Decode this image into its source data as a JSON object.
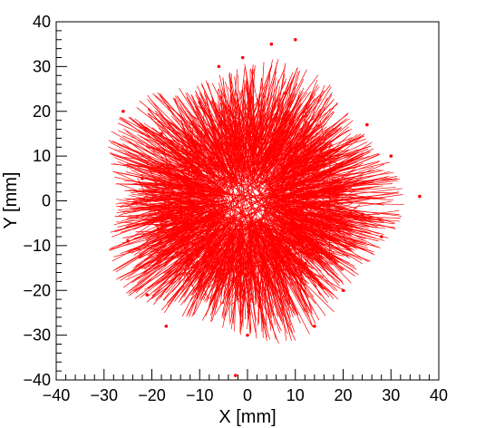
{
  "chart_data": {
    "type": "scatter",
    "title": "",
    "xlabel": "X [mm]",
    "ylabel": "Y [mm]",
    "xlim": [
      -40,
      40
    ],
    "ylim": [
      -40,
      40
    ],
    "xticks": [
      "−40",
      "−30",
      "−20",
      "−10",
      "0",
      "10",
      "20",
      "30",
      "40"
    ],
    "yticks": [
      "−40",
      "−30",
      "−20",
      "−10",
      "0",
      "10",
      "20",
      "30",
      "40"
    ],
    "grid": false,
    "legend": "none",
    "series_color": "#ff0000",
    "marker": "small dot with short track segments",
    "description_of_marks": "Dense red track segments distributed in a roughly circular pattern of radius ~30 mm centered at the origin, with a sparser central region.",
    "points": [
      [
        -2.5,
        -39
      ],
      [
        36,
        1
      ],
      [
        5,
        35
      ],
      [
        -1,
        32
      ],
      [
        10,
        36
      ],
      [
        -17,
        -28
      ],
      [
        -21,
        -21
      ],
      [
        28,
        -8
      ],
      [
        25,
        17
      ],
      [
        14,
        -28
      ],
      [
        0,
        -30
      ],
      [
        -26,
        20
      ],
      [
        -25,
        -9
      ],
      [
        30,
        10
      ],
      [
        -6,
        30
      ],
      [
        7,
        8
      ],
      [
        -5,
        5
      ],
      [
        3,
        -5
      ],
      [
        10,
        -2
      ],
      [
        -12,
        0
      ],
      [
        15,
        10
      ],
      [
        -8,
        -12
      ],
      [
        20,
        -20
      ],
      [
        -18,
        15
      ],
      [
        2,
        15
      ],
      [
        -3,
        -18
      ],
      [
        18,
        2
      ],
      [
        -22,
        5
      ],
      [
        8,
        24
      ],
      [
        -10,
        22
      ],
      [
        12,
        -14
      ],
      [
        -15,
        -5
      ],
      [
        24,
        -3
      ],
      [
        -2,
        0
      ],
      [
        5,
        3
      ],
      [
        -6,
        -3
      ],
      [
        16,
        -6
      ],
      [
        -14,
        8
      ]
    ]
  }
}
